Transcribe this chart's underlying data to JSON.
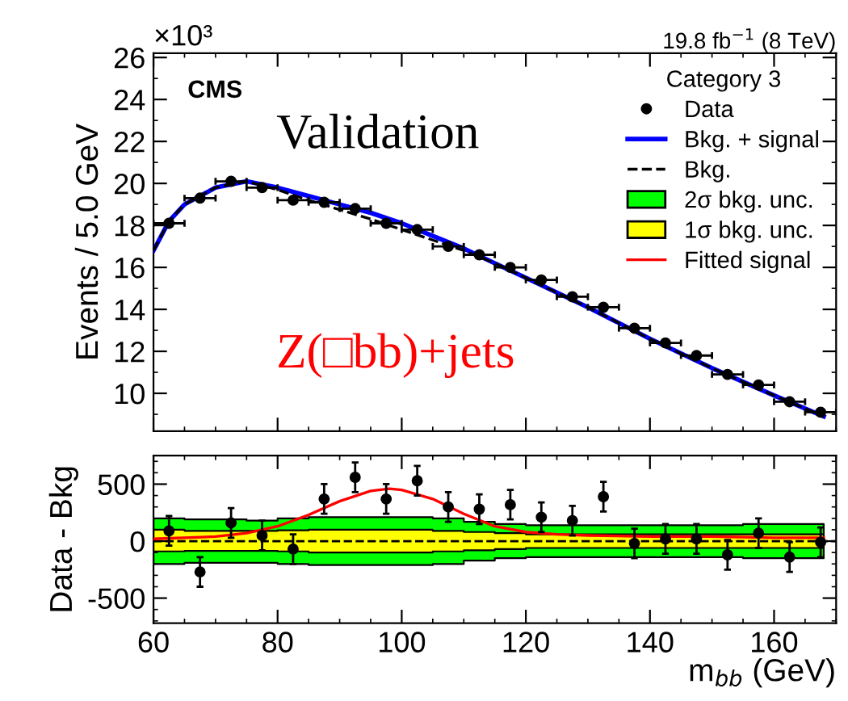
{
  "chart_data": [
    {
      "type": "scatter",
      "title": "19.8 fb$^{−1}$ (8 TeV)",
      "ylabel": "Events / 5.0 GeV",
      "legend_title": "Category 3",
      "legend": "top right",
      "tick_labels": "y",
      "grid": false,
      "xlim": [
        60,
        170
      ],
      "xticks": [
        60,
        80,
        100,
        120,
        140,
        160
      ],
      "ylim": [
        8.2,
        26.2
      ],
      "yticks": [
        10,
        12,
        14,
        16,
        18,
        20,
        22,
        24,
        26
      ],
      "annotations": [
        "×10³",
        "CMS",
        "Validation",
        "Z(□bb)+jets"
      ],
      "series": [
        {
          "name": "Data",
          "marker": "circle",
          "color": "#000000",
          "x": [
            62.5,
            67.5,
            72.5,
            77.5,
            82.5,
            87.5,
            92.5,
            97.5,
            102.5,
            107.5,
            112.5,
            117.5,
            122.5,
            127.5,
            132.5,
            137.5,
            142.5,
            147.5,
            152.5,
            157.5,
            162.5,
            167.5
          ],
          "values": [
            18.1,
            19.3,
            20.1,
            19.8,
            19.2,
            19.1,
            18.8,
            18.1,
            17.8,
            17.0,
            16.6,
            16.0,
            15.4,
            14.6,
            14.1,
            13.1,
            12.4,
            11.8,
            10.9,
            10.4,
            9.6,
            9.1
          ],
          "xerrors": [
            2.5,
            2.5,
            2.5,
            2.5,
            2.5,
            2.5,
            2.5,
            2.5,
            2.5,
            2.5,
            2.5,
            2.5,
            2.5,
            2.5,
            2.5,
            2.5,
            2.5,
            2.5,
            2.5,
            2.5,
            2.5,
            2.5
          ]
        },
        {
          "name": "Bkg. + signal",
          "type": "line",
          "line_style": "solid",
          "color": "#0000ff",
          "x": [
            60,
            62.5,
            65,
            70,
            75,
            80,
            85,
            90,
            95,
            100,
            105,
            110,
            115,
            120,
            125,
            130,
            140,
            150,
            160,
            168
          ],
          "values": [
            16.8,
            18.2,
            19.0,
            19.8,
            20.1,
            19.8,
            19.4,
            19.0,
            18.6,
            18.1,
            17.5,
            16.9,
            16.2,
            15.5,
            14.8,
            14.1,
            12.6,
            11.2,
            9.9,
            8.9
          ]
        },
        {
          "name": "Bkg.",
          "type": "line",
          "line_style": "dashed",
          "color": "#000000",
          "x": [
            60,
            62.5,
            65,
            70,
            75,
            80,
            85,
            90,
            95,
            100,
            105,
            110,
            115,
            120,
            125,
            130,
            140,
            150,
            160,
            168
          ],
          "values": [
            16.8,
            18.2,
            19.0,
            19.8,
            20.1,
            19.7,
            19.2,
            18.75,
            18.3,
            17.8,
            17.3,
            16.8,
            16.2,
            15.5,
            14.8,
            14.1,
            12.6,
            11.2,
            9.9,
            8.9
          ]
        }
      ]
    },
    {
      "type": "scatter",
      "xlabel": "m$_{bb}$ (GeV)",
      "ylabel": "Data - Bkg",
      "grid": false,
      "xlim": [
        60,
        170
      ],
      "xticks": [
        60,
        80,
        100,
        120,
        140,
        160
      ],
      "ylim": [
        -720,
        750
      ],
      "yticks": [
        -500,
        0,
        500
      ],
      "legend": "top right",
      "ref_lines": [
        {
          "axis": "y",
          "value": 0,
          "color": "#000000",
          "line_style": "dashed"
        }
      ],
      "series": [
        {
          "name": "2σ bkg. unc.",
          "type": "line",
          "line_style": "solid",
          "color": "#00ff00",
          "x": [
            60,
            65,
            70,
            75,
            80,
            85,
            90,
            95,
            100,
            105,
            110,
            115,
            120,
            125,
            130,
            135,
            140,
            145,
            150,
            155,
            160,
            165,
            168
          ],
          "values": [
            null,
            null,
            null,
            null,
            null,
            null,
            null,
            null,
            null,
            null,
            null,
            null,
            null,
            null,
            null,
            null,
            null,
            null,
            null,
            null,
            null,
            null,
            null
          ],
          "lower": [
            -200,
            -190,
            -190,
            -190,
            -200,
            -210,
            -210,
            -210,
            -210,
            -200,
            -170,
            -150,
            -140,
            -140,
            -140,
            -140,
            -140,
            -140,
            -140,
            -150,
            -150,
            -150,
            -150
          ],
          "upper": [
            200,
            190,
            190,
            180,
            200,
            210,
            210,
            210,
            210,
            200,
            170,
            150,
            140,
            140,
            140,
            140,
            140,
            140,
            140,
            150,
            150,
            150,
            150
          ]
        },
        {
          "name": "1σ bkg. unc.",
          "type": "line",
          "line_style": "solid",
          "color": "#ffff00",
          "x": [
            60,
            65,
            70,
            75,
            80,
            85,
            90,
            95,
            100,
            105,
            110,
            115,
            120,
            125,
            130,
            135,
            140,
            145,
            150,
            155,
            160,
            165,
            168
          ],
          "values": [
            null,
            null,
            null,
            null,
            null,
            null,
            null,
            null,
            null,
            null,
            null,
            null,
            null,
            null,
            null,
            null,
            null,
            null,
            null,
            null,
            null,
            null,
            null
          ],
          "lower": [
            -90,
            -85,
            -85,
            -85,
            -90,
            -100,
            -100,
            -100,
            -100,
            -90,
            -80,
            -70,
            -60,
            -60,
            -60,
            -60,
            -60,
            -60,
            -60,
            -60,
            -60,
            -60,
            -60
          ],
          "upper": [
            100,
            90,
            90,
            90,
            95,
            100,
            100,
            100,
            100,
            90,
            80,
            70,
            60,
            60,
            60,
            60,
            60,
            60,
            60,
            60,
            60,
            60,
            60
          ]
        },
        {
          "name": "Fitted signal",
          "type": "line",
          "line_style": "solid",
          "color": "#ff0000",
          "x": [
            60,
            70,
            75,
            80,
            85,
            90,
            95,
            98,
            100,
            105,
            110,
            115,
            120,
            125,
            130,
            140,
            150,
            160,
            168
          ],
          "values": [
            20,
            40,
            70,
            130,
            230,
            350,
            440,
            460,
            450,
            370,
            240,
            130,
            80,
            60,
            50,
            40,
            40,
            30,
            30
          ]
        },
        {
          "marker": "circle",
          "color": "#000000",
          "x": [
            62.5,
            67.5,
            72.5,
            77.5,
            82.5,
            87.5,
            92.5,
            97.5,
            102.5,
            107.5,
            112.5,
            117.5,
            122.5,
            127.5,
            132.5,
            137.5,
            142.5,
            147.5,
            152.5,
            157.5,
            162.5,
            167.5
          ],
          "values": [
            90,
            -270,
            160,
            50,
            -70,
            370,
            560,
            370,
            530,
            300,
            280,
            320,
            210,
            180,
            390,
            -20,
            20,
            20,
            -120,
            70,
            -140,
            -10
          ],
          "errors": [
            130,
            130,
            130,
            130,
            130,
            130,
            130,
            130,
            130,
            130,
            130,
            130,
            130,
            130,
            130,
            130,
            130,
            130,
            130,
            130,
            130,
            130
          ]
        }
      ]
    }
  ]
}
